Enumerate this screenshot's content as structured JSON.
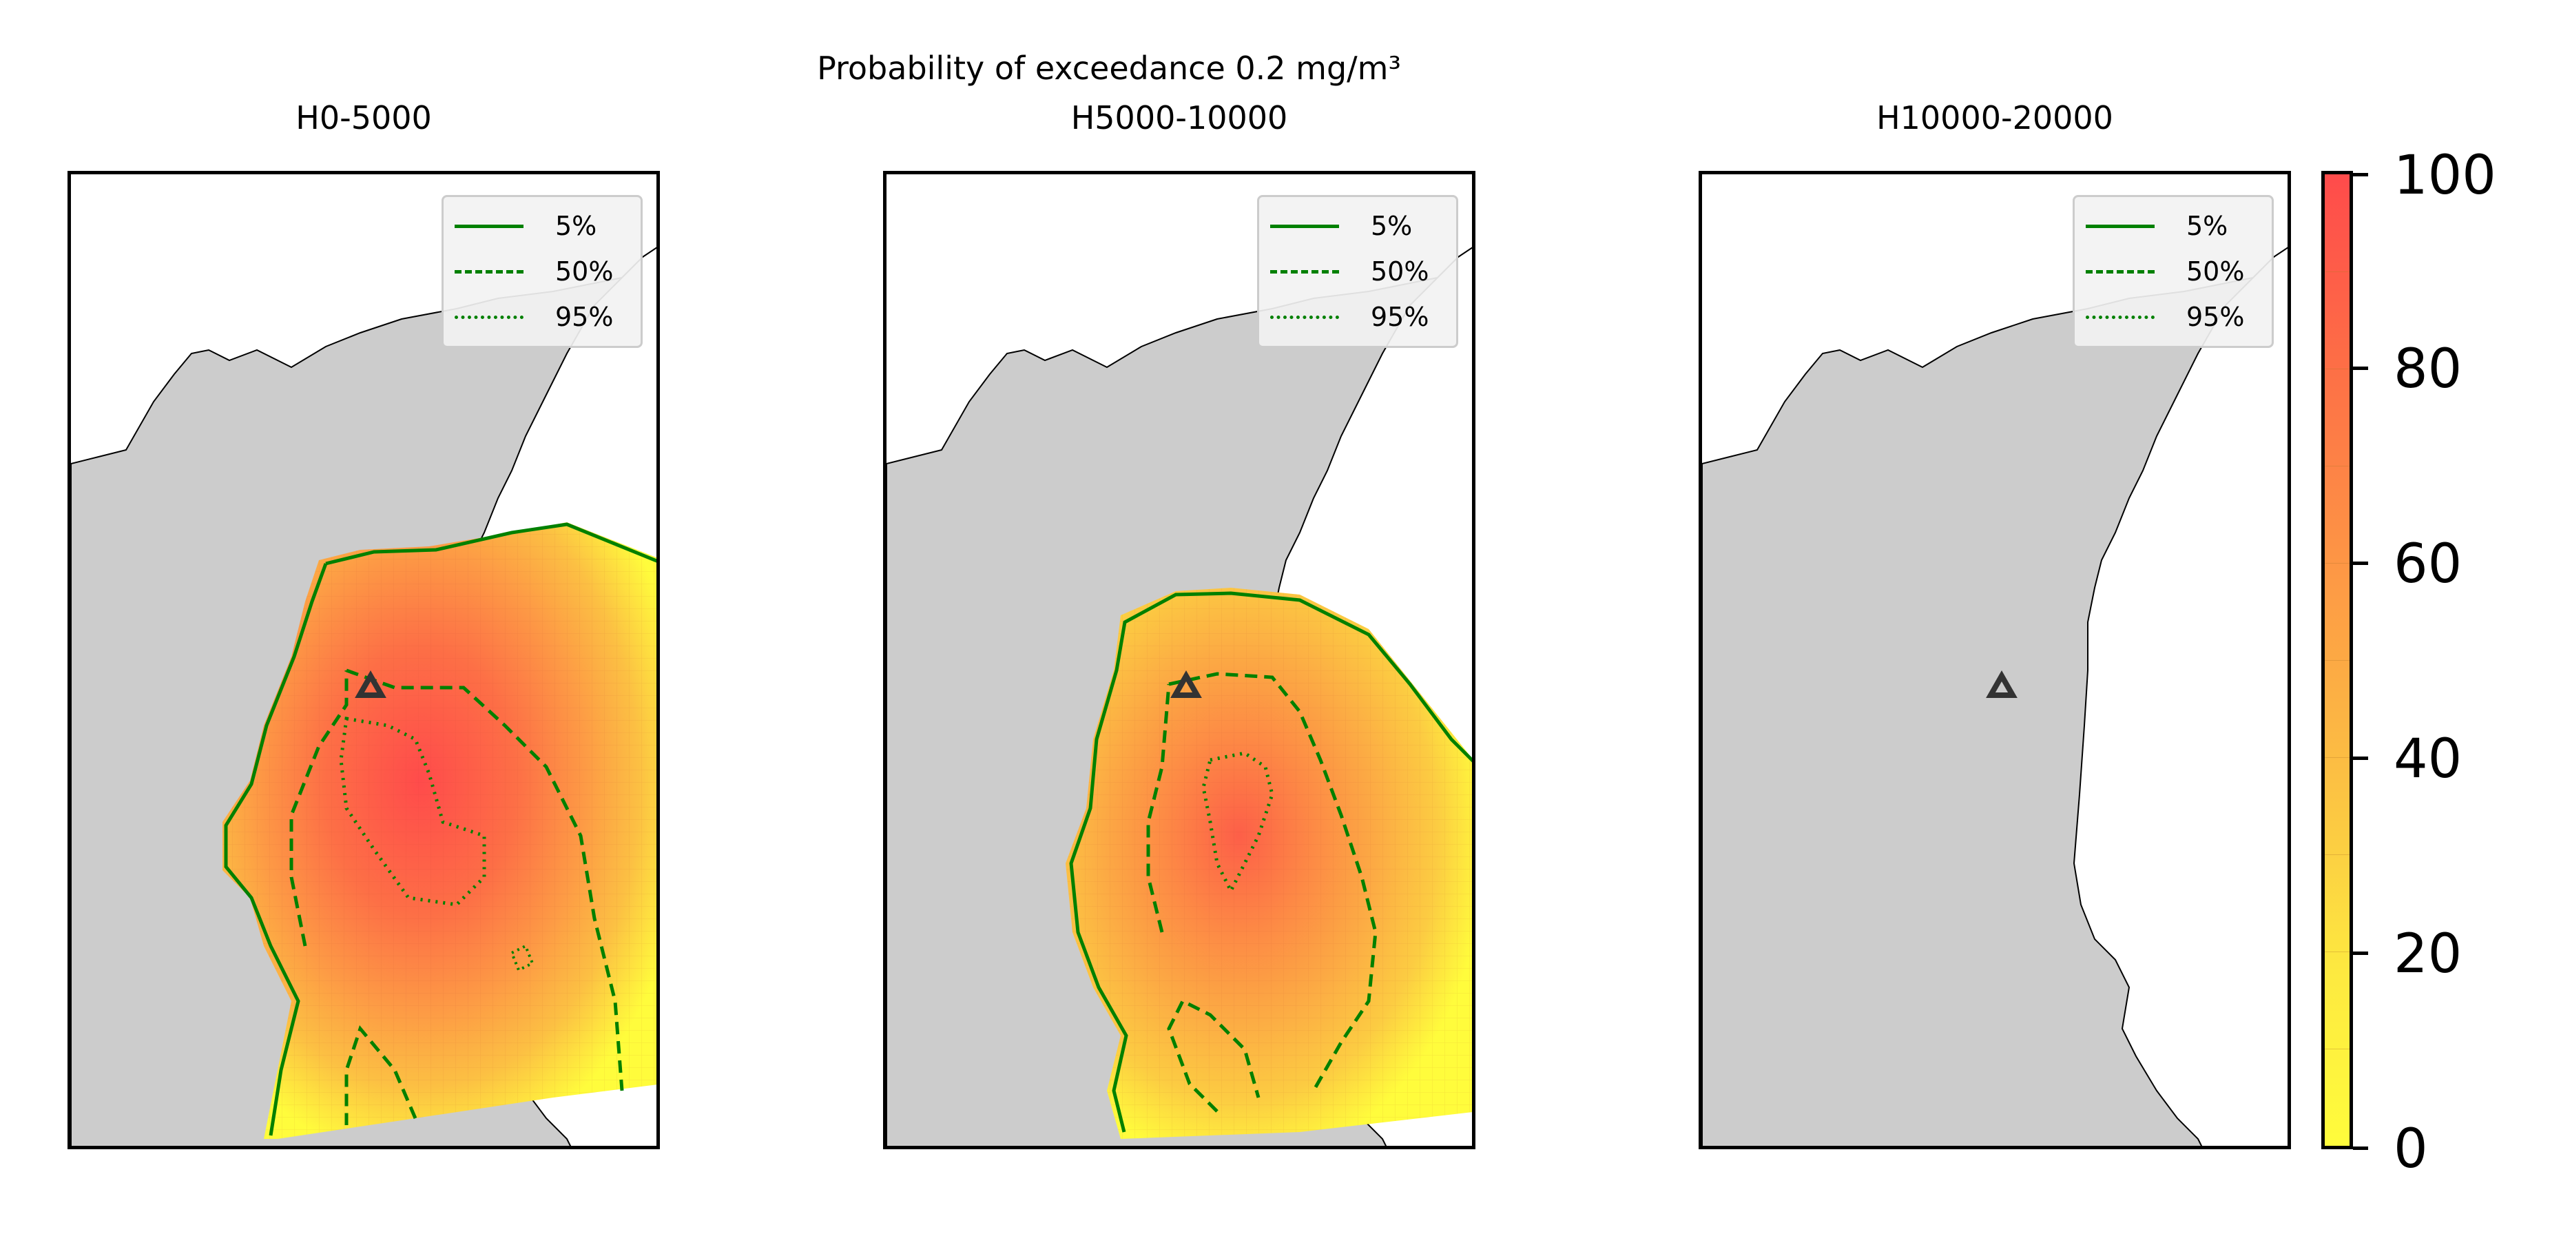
{
  "figure": {
    "suptitle_line1": "Probability of exceedance 0.2 mg/m³",
    "suptitle_line2": "H5000-10000"
  },
  "panels": [
    {
      "title": "H0-5000",
      "has_plume": true,
      "plume_intensity": "high"
    },
    {
      "title": "H5000-10000",
      "has_plume": true,
      "plume_intensity": "medium"
    },
    {
      "title": "H10000-20000",
      "has_plume": false,
      "plume_intensity": "none"
    }
  ],
  "legend": {
    "items": [
      {
        "label": "5%",
        "style": "solid"
      },
      {
        "label": "50%",
        "style": "dashed"
      },
      {
        "label": "95%",
        "style": "dotted"
      }
    ]
  },
  "colorbar": {
    "ticks": [
      "0",
      "20",
      "40",
      "60",
      "80",
      "100"
    ],
    "range": [
      0,
      100
    ],
    "colors": {
      "low": "#fffc3c",
      "high": "#ff4b4b"
    }
  },
  "map_style": {
    "land_color": "#cccccc",
    "sea_color": "#ffffff",
    "contour_color": "#008000",
    "volcano_icon": "triangle-volcano-marker"
  }
}
